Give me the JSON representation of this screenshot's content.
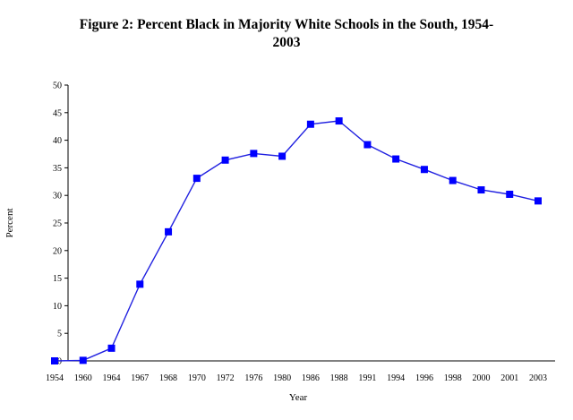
{
  "chart_data": {
    "type": "line",
    "title_line1": "Figure 2: Percent Black in Majority White Schools in the South, 1954-",
    "title_line2": "2003",
    "xlabel": "Year",
    "ylabel": "Percent",
    "ylim": [
      0,
      50
    ],
    "yticks": [
      0,
      5,
      10,
      15,
      20,
      25,
      30,
      35,
      40,
      45,
      50
    ],
    "categories": [
      "1954",
      "1960",
      "1964",
      "1967",
      "1968",
      "1970",
      "1972",
      "1976",
      "1980",
      "1986",
      "1988",
      "1991",
      "1994",
      "1996",
      "1998",
      "2000",
      "2001",
      "2003"
    ],
    "values": [
      0.001,
      0.1,
      2.3,
      13.9,
      23.4,
      33.1,
      36.4,
      37.6,
      37.1,
      42.9,
      43.5,
      39.2,
      36.6,
      34.7,
      32.7,
      31.0,
      30.2,
      29.0
    ],
    "grid": false,
    "legend": "none",
    "series_color": "#2020e0",
    "marker_color": "#0000ff"
  }
}
